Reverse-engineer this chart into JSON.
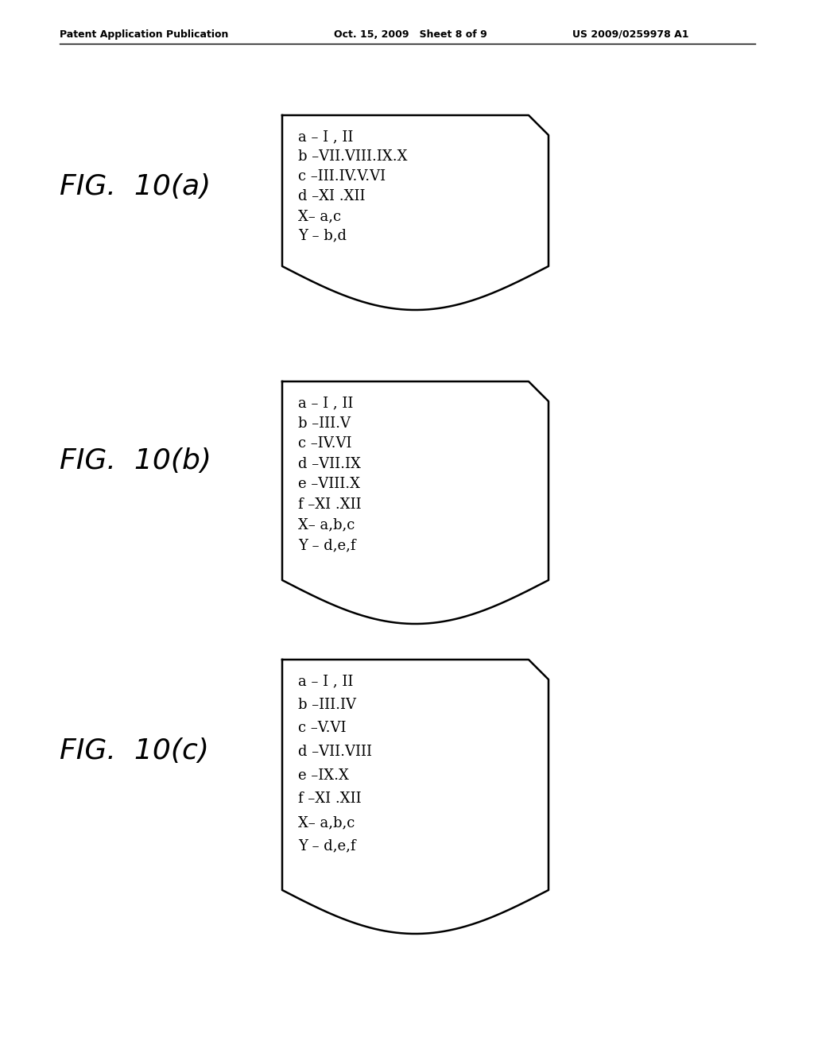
{
  "header_left": "Patent Application Publication",
  "header_mid": "Oct. 15, 2009   Sheet 8 of 9",
  "header_right": "US 2009/0259978 A1",
  "figures": [
    {
      "label": "FIG.  10(a)",
      "lines": [
        "a – I , II",
        "b –VII.VIII.IX.X",
        "c –III.IV.V.VI",
        "d –XI .XII",
        "X– a,c",
        "Y – b,d"
      ]
    },
    {
      "label": "FIG.  10(b)",
      "lines": [
        "a – I , II",
        "b –III.V",
        "c –IV.VI",
        "d –VII.IX",
        "e –VIII.X",
        "f –XI .XII",
        "X– a,b,c",
        "Y – d,e,f"
      ]
    },
    {
      "label": "FIG.  10(c)",
      "lines": [
        "a – I , II",
        "b –III.IV",
        "c –V.VI",
        "d –VII.VIII",
        "e –IX.X",
        "f –XI .XII",
        "X– a,b,c",
        "Y – d,e,f"
      ]
    }
  ],
  "background_color": "#ffffff",
  "text_color": "#000000"
}
